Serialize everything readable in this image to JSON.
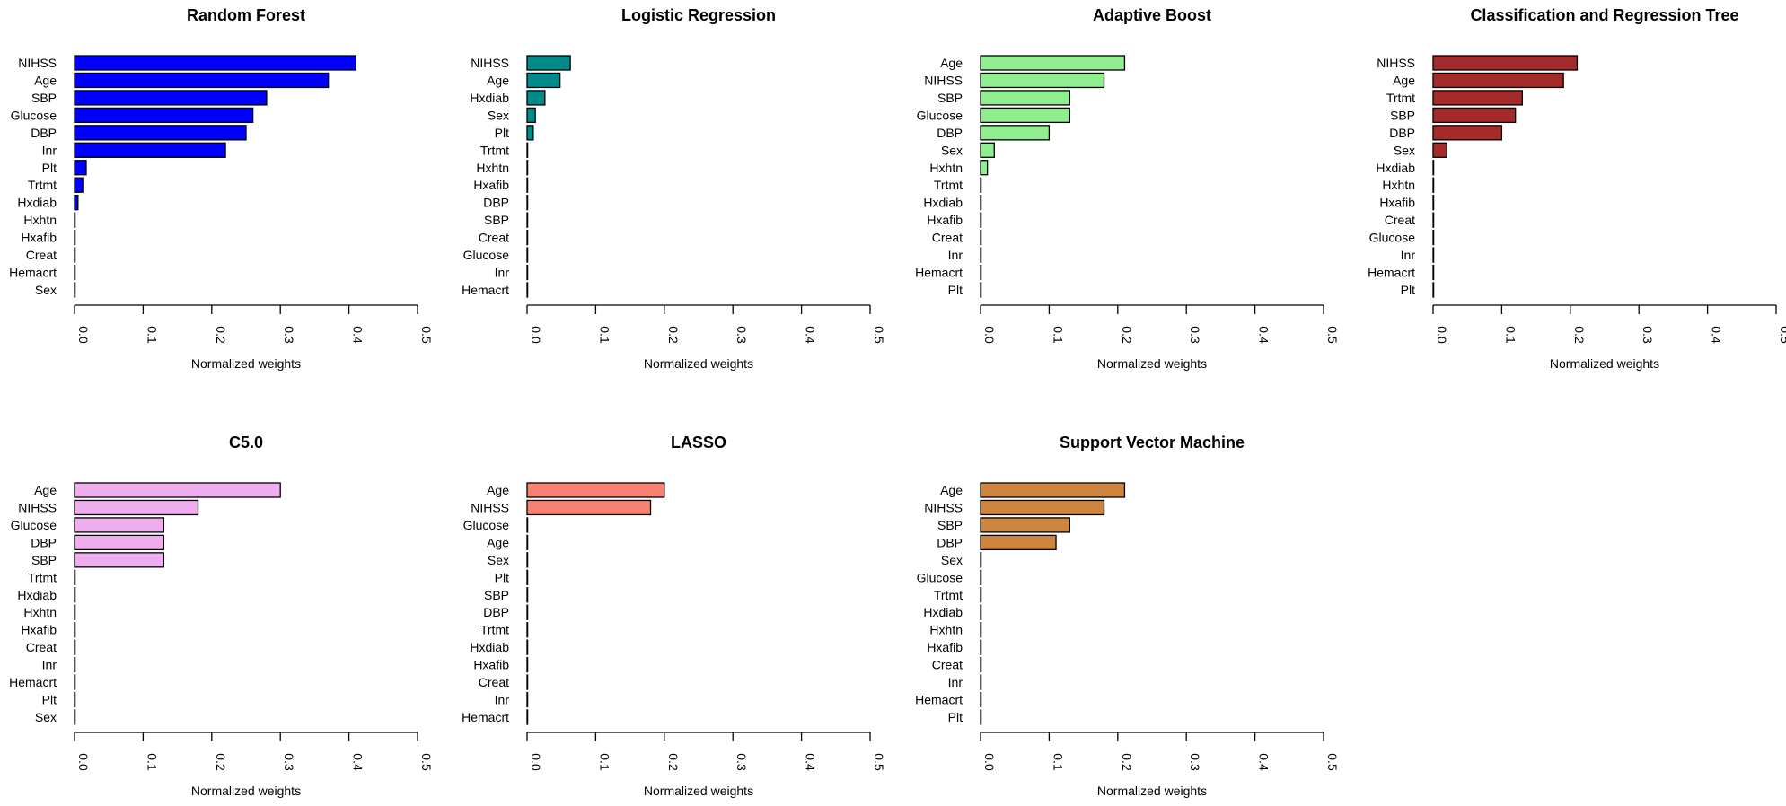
{
  "chart_data": [
    {
      "type": "bar",
      "orientation": "horizontal",
      "title": "Random Forest",
      "xlabel": "Normalized weights",
      "xlim": [
        0,
        0.5
      ],
      "xticks": [
        "0.0",
        "0.1",
        "0.2",
        "0.3",
        "0.4",
        "0.5"
      ],
      "color": "#0000FF",
      "categories": [
        "NIHSS",
        "Age",
        "SBP",
        "Glucose",
        "DBP",
        "Inr",
        "Plt",
        "Trtmt",
        "Hxdiab",
        "Hxhtn",
        "Hxafib",
        "Creat",
        "Hemacrt",
        "Sex"
      ],
      "values": [
        0.41,
        0.37,
        0.28,
        0.26,
        0.25,
        0.22,
        0.017,
        0.012,
        0.005,
        0,
        0,
        0,
        0,
        0
      ]
    },
    {
      "type": "bar",
      "orientation": "horizontal",
      "title": "Logistic Regression",
      "xlabel": "Normalized weights",
      "xlim": [
        0,
        0.5
      ],
      "xticks": [
        "0.0",
        "0.1",
        "0.2",
        "0.3",
        "0.4",
        "0.5"
      ],
      "color": "#008B8B",
      "categories": [
        "NIHSS",
        "Age",
        "Hxdiab",
        "Sex",
        "Plt",
        "Trtmt",
        "Hxhtn",
        "Hxafib",
        "DBP",
        "SBP",
        "Creat",
        "Glucose",
        "Inr",
        "Hemacrt"
      ],
      "values": [
        0.063,
        0.048,
        0.026,
        0.012,
        0.009,
        0,
        0,
        0,
        0,
        0,
        0,
        0,
        0,
        0
      ]
    },
    {
      "type": "bar",
      "orientation": "horizontal",
      "title": "Adaptive Boost",
      "xlabel": "Normalized weights",
      "xlim": [
        0,
        0.5
      ],
      "xticks": [
        "0.0",
        "0.1",
        "0.2",
        "0.3",
        "0.4",
        "0.5"
      ],
      "color": "#90EE90",
      "categories": [
        "Age",
        "NIHSS",
        "SBP",
        "Glucose",
        "DBP",
        "Sex",
        "Hxhtn",
        "Trtmt",
        "Hxdiab",
        "Hxafib",
        "Creat",
        "Inr",
        "Hemacrt",
        "Plt"
      ],
      "values": [
        0.21,
        0.18,
        0.13,
        0.13,
        0.1,
        0.02,
        0.01,
        0,
        0,
        0,
        0,
        0,
        0,
        0
      ]
    },
    {
      "type": "bar",
      "orientation": "horizontal",
      "title": "Classification and Regression Tree",
      "xlabel": "Normalized weights",
      "xlim": [
        0,
        0.5
      ],
      "xticks": [
        "0.0",
        "0.1",
        "0.2",
        "0.3",
        "0.4",
        "0.5"
      ],
      "color": "#A52A2A",
      "categories": [
        "NIHSS",
        "Age",
        "Trtmt",
        "SBP",
        "DBP",
        "Sex",
        "Hxdiab",
        "Hxhtn",
        "Hxafib",
        "Creat",
        "Glucose",
        "Inr",
        "Hemacrt",
        "Plt"
      ],
      "values": [
        0.21,
        0.19,
        0.13,
        0.12,
        0.1,
        0.02,
        0,
        0,
        0,
        0,
        0,
        0,
        0,
        0
      ]
    },
    {
      "type": "bar",
      "orientation": "horizontal",
      "title": "C5.0",
      "xlabel": "Normalized weights",
      "xlim": [
        0,
        0.5
      ],
      "xticks": [
        "0.0",
        "0.1",
        "0.2",
        "0.3",
        "0.4",
        "0.5"
      ],
      "color": "#EEAEEE",
      "categories": [
        "Age",
        "NIHSS",
        "Glucose",
        "DBP",
        "SBP",
        "Trtmt",
        "Hxdiab",
        "Hxhtn",
        "Hxafib",
        "Creat",
        "Inr",
        "Hemacrt",
        "Plt",
        "Sex"
      ],
      "values": [
        0.3,
        0.18,
        0.13,
        0.13,
        0.13,
        0,
        0,
        0,
        0,
        0,
        0,
        0,
        0,
        0
      ]
    },
    {
      "type": "bar",
      "orientation": "horizontal",
      "title": "LASSO",
      "xlabel": "Normalized weights",
      "xlim": [
        0,
        0.5
      ],
      "xticks": [
        "0.0",
        "0.1",
        "0.2",
        "0.3",
        "0.4",
        "0.5"
      ],
      "color": "#FA8072",
      "categories": [
        "Age",
        "NIHSS",
        "Glucose",
        "Age",
        "Sex",
        "Plt",
        "SBP",
        "DBP",
        "Trtmt",
        "Hxdiab",
        "Hxafib",
        "Creat",
        "Inr",
        "Hemacrt"
      ],
      "values": [
        0.2,
        0.18,
        0,
        0,
        0,
        0,
        0,
        0,
        0,
        0,
        0,
        0,
        0,
        0
      ]
    },
    {
      "type": "bar",
      "orientation": "horizontal",
      "title": "Support Vector Machine",
      "xlabel": "Normalized weights",
      "xlim": [
        0,
        0.5
      ],
      "xticks": [
        "0.0",
        "0.1",
        "0.2",
        "0.3",
        "0.4",
        "0.5"
      ],
      "color": "#CD853F",
      "categories": [
        "Age",
        "NIHSS",
        "SBP",
        "DBP",
        "Sex",
        "Glucose",
        "Trtmt",
        "Hxdiab",
        "Hxhtn",
        "Hxafib",
        "Creat",
        "Inr",
        "Hemacrt",
        "Plt"
      ],
      "values": [
        0.21,
        0.18,
        0.13,
        0.11,
        0,
        0,
        0,
        0,
        0,
        0,
        0,
        0,
        0,
        0
      ]
    }
  ]
}
